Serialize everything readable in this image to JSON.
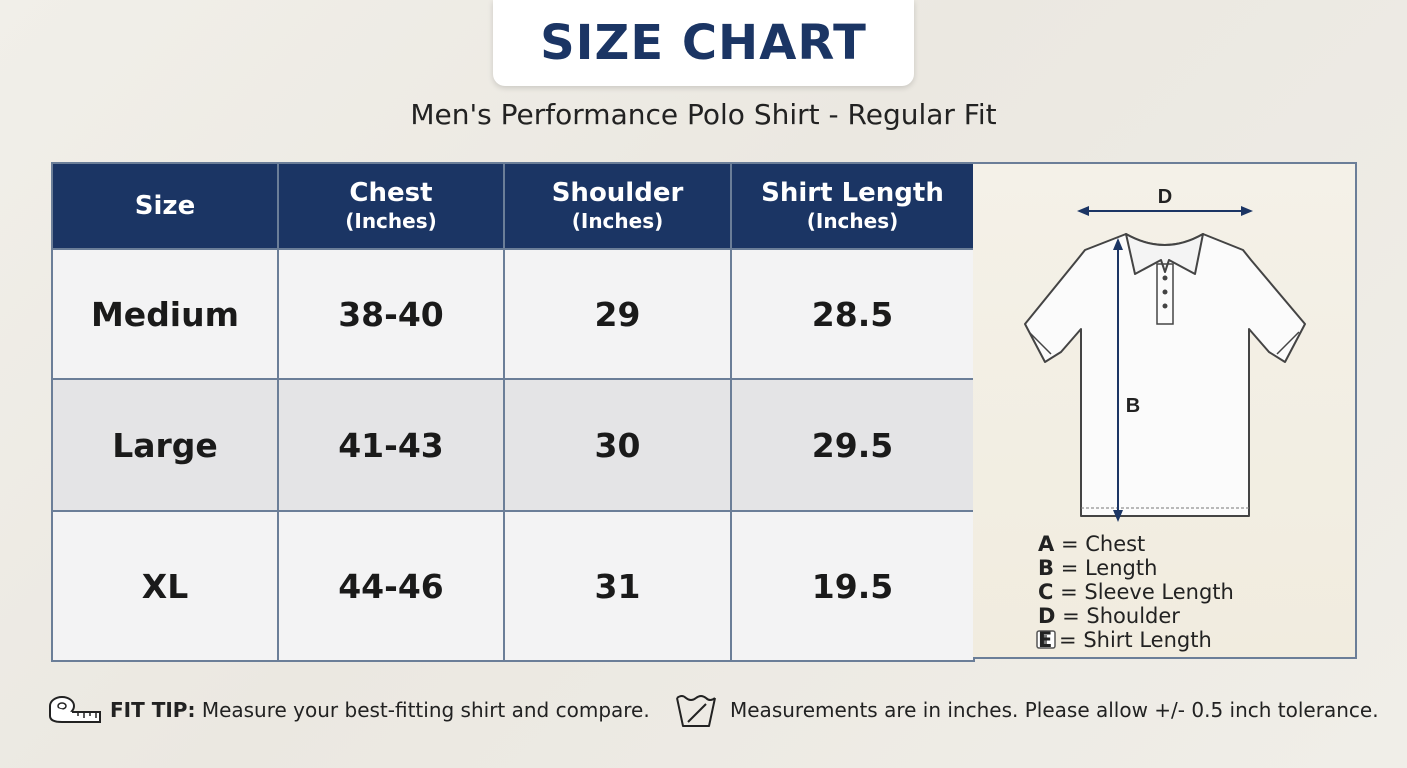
{
  "header": {
    "title": "SIZE CHART",
    "subtitle": "Men's Performance Polo Shirt - Regular Fit"
  },
  "table": {
    "columns": [
      {
        "label": "Size",
        "unit": ""
      },
      {
        "label": "Chest",
        "unit": "(Inches)"
      },
      {
        "label": "Shoulder",
        "unit": "(Inches)"
      },
      {
        "label": "Shirt Length",
        "unit": "(Inches)"
      }
    ],
    "rows": [
      {
        "size": "Medium",
        "chest": "38-40",
        "shoulder": "29",
        "length": "28.5"
      },
      {
        "size": "Large",
        "chest": "41-43",
        "shoulder": "30",
        "length": "29.5"
      },
      {
        "size": "XL",
        "chest": "44-46",
        "shoulder": "31",
        "length": "19.5"
      }
    ]
  },
  "diagram": {
    "label_top": "D",
    "label_side": "B",
    "legend": [
      {
        "key": "A",
        "text": "= Chest"
      },
      {
        "key": "B",
        "text": "= Length"
      },
      {
        "key": "C",
        "text": "= Sleeve Length"
      },
      {
        "key": "D",
        "text": "= Shoulder"
      },
      {
        "key": "E",
        "text": "= Shirt Length"
      }
    ],
    "icons": [
      "polo-shirt-icon",
      "tag-icon"
    ]
  },
  "footer": {
    "tip_label": "FIT TIP:",
    "tip_text": "Measure your best-fitting shirt and compare.",
    "note": "Measurements are in inches. Please allow +/- 0.5 inch tolerance.",
    "icons": [
      "measuring-tape-icon",
      "wash-basin-icon"
    ]
  },
  "colors": {
    "navy": "#1b3564",
    "border": "#6b7e98",
    "row_light": "#f3f3f4",
    "row_shaded": "#e4e4e6"
  }
}
